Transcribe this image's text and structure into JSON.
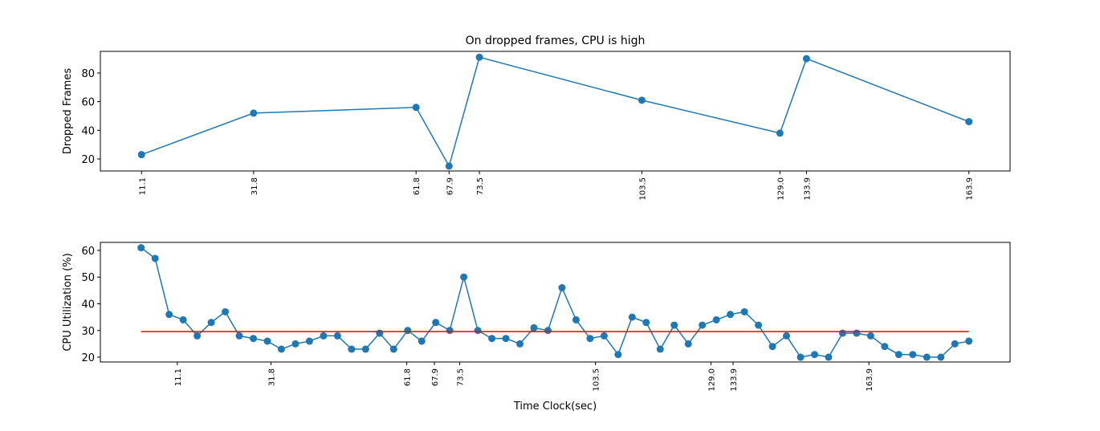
{
  "chart_data": [
    {
      "type": "line",
      "title": "On dropped frames, CPU is high",
      "ylabel": "Dropped Frames",
      "series": [
        {
          "color": "#1f77b4",
          "marker": true,
          "x": [
            11.1,
            31.8,
            61.8,
            67.9,
            73.5,
            103.5,
            129.0,
            133.9,
            163.9
          ],
          "values": [
            23,
            52,
            56,
            15,
            91,
            61,
            38,
            90,
            46
          ]
        }
      ],
      "xlim": [
        3.5,
        171.5
      ],
      "ylim": [
        11.6,
        95.1
      ],
      "xticks": [
        11.1,
        31.8,
        61.8,
        67.9,
        73.5,
        103.5,
        {
          "value": 129,
          "label": "129.0"
        },
        133.9,
        163.9
      ],
      "yticks": [
        20,
        40,
        60,
        80
      ]
    },
    {
      "type": "line",
      "xlabel": "Time Clock(sec)",
      "ylabel": "CPU Utilization (%)",
      "series": [
        {
          "color": "#1f77b4",
          "marker": true,
          "x": [
            3.1,
            6.2,
            9.3,
            12.4,
            15.5,
            18.6,
            21.7,
            24.8,
            27.9,
            31,
            34.1,
            37.2,
            40.3,
            43.4,
            46.5,
            49.6,
            52.7,
            55.8,
            58.9,
            62,
            65.1,
            68.2,
            71.3,
            74.4,
            77.5,
            80.6,
            83.7,
            86.8,
            89.9,
            93,
            96.1,
            99.2,
            102.3,
            105.4,
            108.5,
            111.6,
            114.7,
            117.8,
            120.9,
            124,
            127.1,
            130.2,
            133.3,
            136.4,
            139.5,
            142.6,
            145.7,
            148.8,
            151.9,
            155,
            158.1,
            161.2,
            164.3,
            167.4,
            170.5,
            173.6,
            176.7,
            179.8,
            182.9,
            186
          ],
          "values": [
            61,
            57,
            36,
            34,
            28,
            33,
            37,
            28,
            27,
            26,
            23,
            25,
            26,
            28,
            28,
            23,
            23,
            29,
            23,
            30,
            26,
            33,
            30,
            50,
            30,
            27,
            27,
            25,
            31,
            30,
            46,
            34,
            27,
            28,
            21,
            35,
            33,
            23,
            32,
            25,
            32,
            34,
            36,
            37,
            32,
            24,
            28,
            20,
            21,
            20,
            29,
            29,
            28,
            24,
            21,
            21,
            20,
            20,
            25,
            26
          ]
        },
        {
          "color": "red",
          "marker": false,
          "x": [
            3.1,
            186
          ],
          "values": [
            29.6,
            29.6
          ]
        }
      ],
      "xlim": [
        -5.9,
        195.1
      ],
      "ylim": [
        18.2,
        63.0
      ],
      "xticks": [
        11.1,
        31.8,
        61.8,
        67.9,
        73.5,
        103.5,
        {
          "value": 129,
          "label": "129.0"
        },
        133.9,
        163.9
      ],
      "yticks": [
        20,
        30,
        40,
        50,
        60
      ]
    }
  ]
}
